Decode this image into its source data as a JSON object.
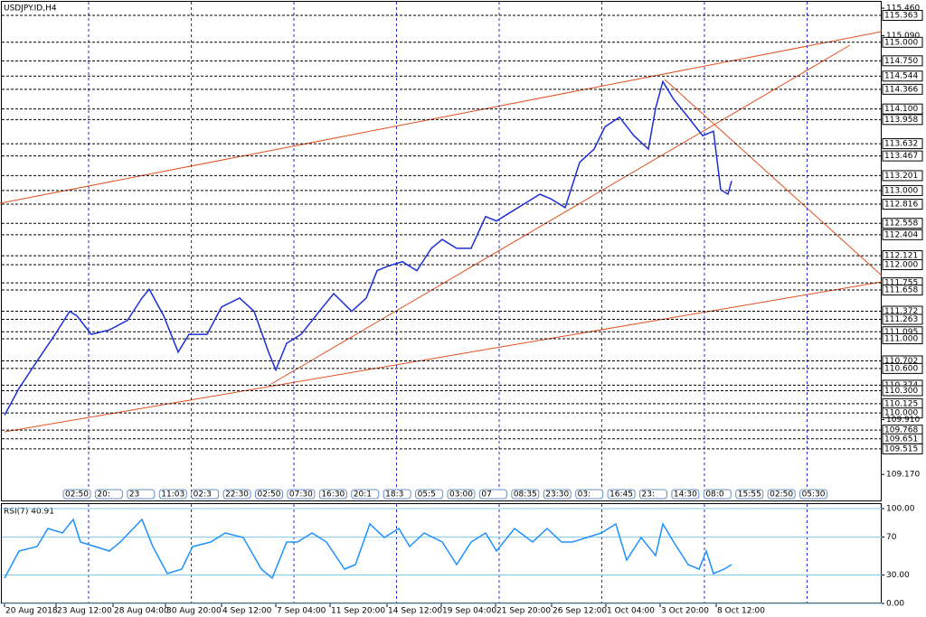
{
  "chart_data": [
    {
      "type": "line",
      "title": "USDJPY.ID,H4",
      "color": "#1c2fd6",
      "x": [
        0,
        4,
        9,
        14,
        18,
        20,
        24,
        29,
        34,
        38,
        40,
        44,
        48,
        51,
        56,
        60,
        65,
        69,
        73,
        75,
        78,
        82,
        88,
        91,
        96,
        100,
        103,
        106,
        110,
        114,
        118,
        121,
        125,
        129,
        133,
        136,
        140,
        144,
        148,
        151,
        155,
        159,
        163,
        166,
        170,
        174,
        178,
        180,
        182,
        185,
        189,
        193,
        196,
        198,
        200,
        201
      ],
      "values": [
        109.97,
        110.33,
        110.7,
        111.06,
        111.37,
        111.31,
        111.06,
        111.12,
        111.25,
        111.55,
        111.67,
        111.31,
        110.82,
        111.06,
        111.06,
        111.43,
        111.55,
        111.37,
        110.82,
        110.58,
        110.94,
        111.06,
        111.43,
        111.61,
        111.37,
        111.55,
        111.92,
        111.98,
        112.04,
        111.92,
        112.22,
        112.34,
        112.22,
        112.22,
        112.65,
        112.59,
        112.71,
        112.83,
        112.95,
        112.89,
        112.77,
        113.38,
        113.56,
        113.86,
        113.99,
        113.74,
        113.56,
        114.11,
        114.47,
        114.23,
        113.99,
        113.74,
        113.8,
        113.01,
        112.95,
        113.13
      ],
      "xlim": [
        -0.75,
        242.5
      ],
      "ylim": [
        108.99,
        115.546
      ],
      "yticks": [
        {
          "value": 115.46,
          "label": "115.460"
        },
        {
          "value": 115.09,
          "label": "115.090"
        },
        {
          "value": 109.91,
          "label": "109.910"
        },
        {
          "value": 109.17,
          "label": "109.170"
        }
      ],
      "levels": [
        115.363,
        {
          "value": 115,
          "label": "115.000"
        },
        {
          "value": 114.75,
          "label": "114.750"
        },
        114.544,
        114.366,
        {
          "value": 114.1,
          "label": "114.100"
        },
        113.958,
        113.632,
        113.467,
        113.201,
        {
          "value": 113,
          "label": "113.000"
        },
        112.816,
        112.558,
        112.404,
        112.121,
        {
          "value": 112,
          "label": "112.000"
        },
        111.755,
        111.658,
        111.372,
        111.263,
        111.095,
        {
          "value": 111,
          "label": "111.000"
        },
        110.702,
        {
          "value": 110.6,
          "label": "110.600"
        },
        110.374,
        {
          "value": 110.3,
          "label": "110.300"
        },
        110.125,
        {
          "value": 110,
          "label": "110.000"
        },
        109.768,
        109.651,
        109.515
      ],
      "xticks": [
        {
          "value": 0,
          "label": "20 Aug 2018"
        },
        {
          "value": 14.25,
          "label": "23 Aug 12:00"
        },
        {
          "value": 30,
          "label": "28 Aug 04:00"
        },
        {
          "value": 44.5,
          "label": "30 Aug 20:00"
        },
        {
          "value": 60,
          "label": "4 Sep 12:00"
        },
        {
          "value": 75,
          "label": "7 Sep 04:00"
        },
        {
          "value": 90,
          "label": "11 Sep 20:00"
        },
        {
          "value": 105.75,
          "label": "14 Sep 12:00"
        },
        {
          "value": 120.75,
          "label": "19 Sep 04:00"
        },
        {
          "value": 135.75,
          "label": "21 Sep 20:00"
        },
        {
          "value": 151.25,
          "label": "26 Sep 12:00"
        },
        {
          "value": 166.25,
          "label": "1 Oct 04:00"
        },
        {
          "value": 181.25,
          "label": "3 Oct 20:00"
        },
        {
          "value": 196.75,
          "label": "8 Oct 12:00"
        }
      ],
      "time_markers": [
        "02:50",
        "20:",
        "23",
        "11:03",
        "02:3",
        "22:30",
        "02:50",
        "07:30",
        "16:30",
        "20:1",
        "18:3",
        "05:5",
        "03:00",
        "07",
        "08:35",
        "23:30",
        "03:",
        "16:45",
        "23:",
        "14:30",
        "08:0",
        "15:55",
        "02:50",
        "05:30"
      ]
    },
    {
      "type": "line",
      "title": "RSI(7) 40.91",
      "color": "#1e90ff",
      "x": [
        0,
        4,
        9,
        12,
        16,
        19,
        21,
        25,
        29,
        32,
        38,
        41,
        45,
        49,
        52,
        57,
        61,
        66,
        71,
        74,
        78,
        81,
        85,
        89,
        94,
        97,
        101,
        105,
        109,
        112,
        116,
        121,
        125,
        129,
        133,
        136,
        141,
        146,
        150,
        154,
        157,
        161,
        165,
        169,
        172,
        176,
        180,
        182,
        185,
        189,
        192,
        194,
        196,
        199,
        201
      ],
      "values": [
        26.7,
        55.2,
        60,
        79,
        74.3,
        88.6,
        64.8,
        60,
        55.2,
        64.8,
        88.6,
        60,
        31.4,
        36.2,
        60,
        64.8,
        74.3,
        69.5,
        36.2,
        26.7,
        64.8,
        64.8,
        74.3,
        64.8,
        36.2,
        41,
        83.8,
        69.5,
        79,
        60,
        74.3,
        64.8,
        41,
        64.8,
        74.3,
        55.2,
        79,
        64.8,
        79,
        64.8,
        64.8,
        69.5,
        74.3,
        83.8,
        45.7,
        69.5,
        50.5,
        83.8,
        64.8,
        41,
        36.2,
        55.2,
        31.4,
        36.2,
        40.91
      ],
      "xlim": [
        -0.75,
        242.5
      ],
      "ylim": [
        0,
        100
      ],
      "yticks": [
        {
          "value": 100,
          "label": "100.00"
        },
        70,
        {
          "value": 30,
          "label": "30.00"
        },
        {
          "value": 0,
          "label": "0.00"
        }
      ]
    }
  ]
}
